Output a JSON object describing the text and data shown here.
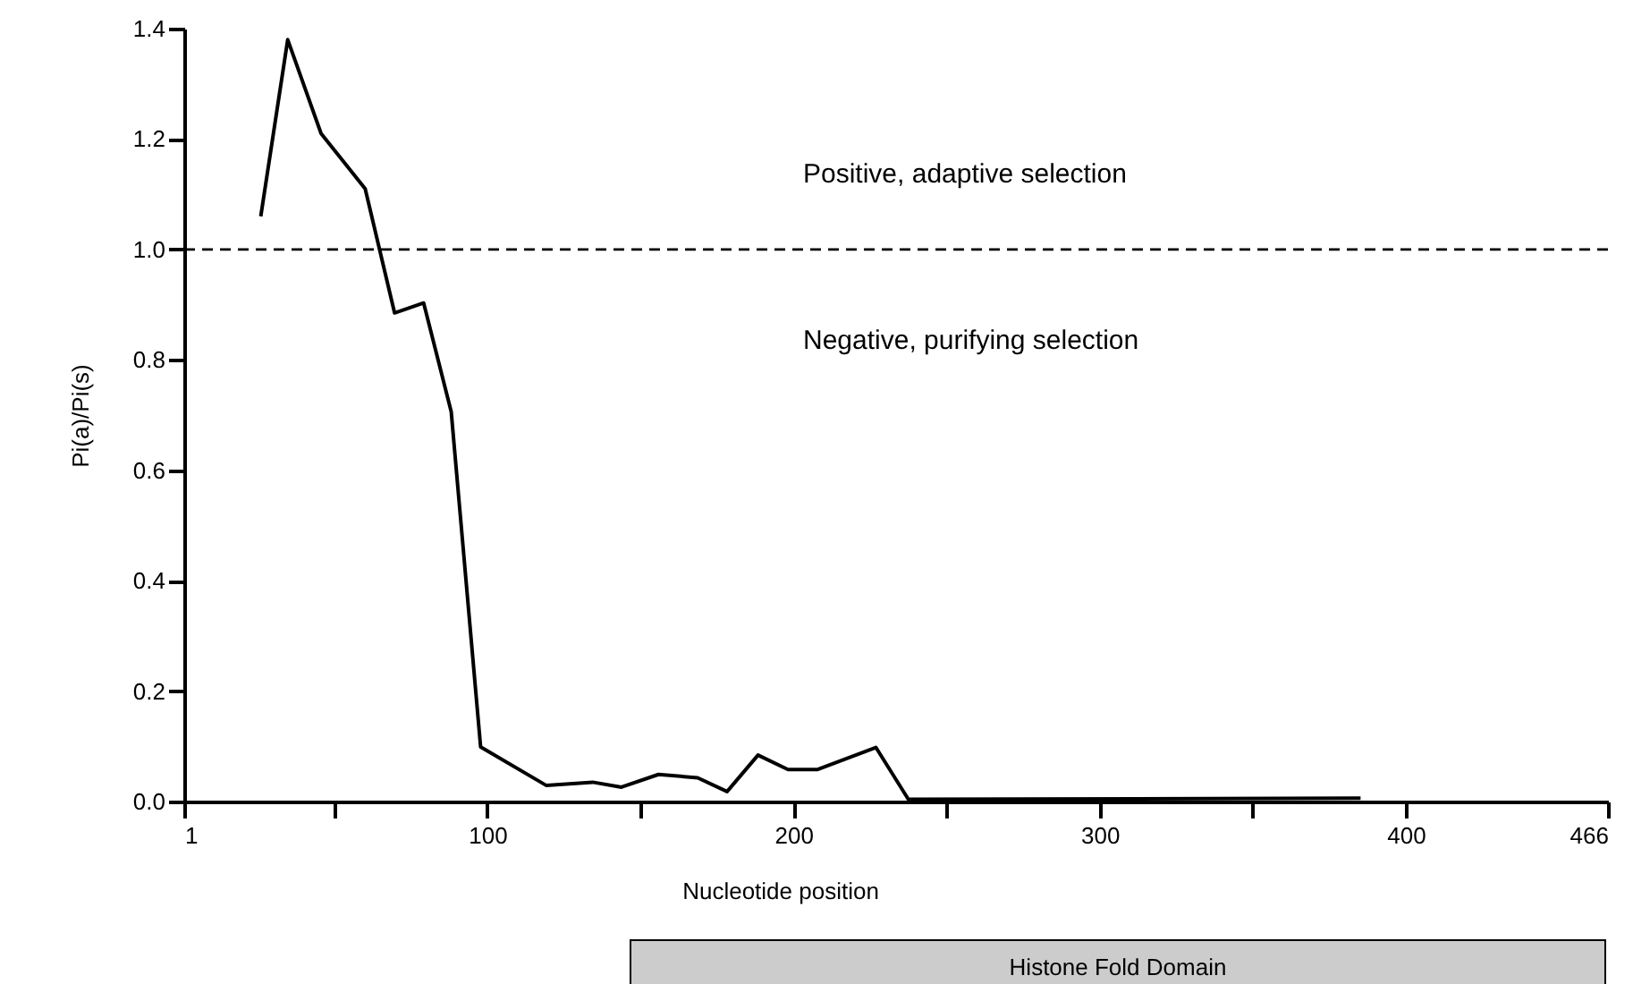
{
  "chart_data": {
    "type": "line",
    "xlabel": "Nucleotide position",
    "ylabel": "Pi(a)/Pi(s)",
    "x": [
      26.0,
      34.8,
      45.7,
      60.1,
      69.7,
      79.2,
      88.2,
      97.8,
      119.3,
      134.4,
      143.8,
      155.9,
      168.7,
      178.3,
      188.4,
      198.2,
      207.9,
      226.9,
      237.5,
      385.2
    ],
    "series": [
      {
        "color": "#000000",
        "values": [
          1.06,
          1.38,
          1.21,
          1.11,
          0.885,
          0.903,
          0.706,
          0.099,
          0.029,
          0.035,
          0.026,
          0.049,
          0.043,
          0.018,
          0.084,
          0.058,
          0.058,
          0.098,
          0.004,
          0.006
        ]
      }
    ],
    "xlim": [
      1,
      466
    ],
    "xticks": [
      1,
      {
        "value": 50,
        "label": null
      },
      100,
      {
        "value": 150,
        "label": null
      },
      200,
      {
        "value": 250,
        "label": null
      },
      300,
      {
        "value": 350,
        "label": null
      },
      400,
      466
    ],
    "ylim": [
      0,
      1.4
    ],
    "yticks": [
      {
        "value": 0,
        "label": "0.0"
      },
      0.2,
      0.4,
      0.6,
      0.8,
      {
        "value": 1,
        "label": "1.0"
      },
      1.2,
      1.4
    ],
    "ref_lines": [
      {
        "axis": "y",
        "value": 1.0,
        "line_style": "dashed",
        "color": "#000000"
      }
    ],
    "annotations": [
      "Positive, adaptive selection",
      "Negative, purifying selection",
      "Histone Fold Domain"
    ],
    "grid": false,
    "marker": "none",
    "line_style": "solid"
  }
}
